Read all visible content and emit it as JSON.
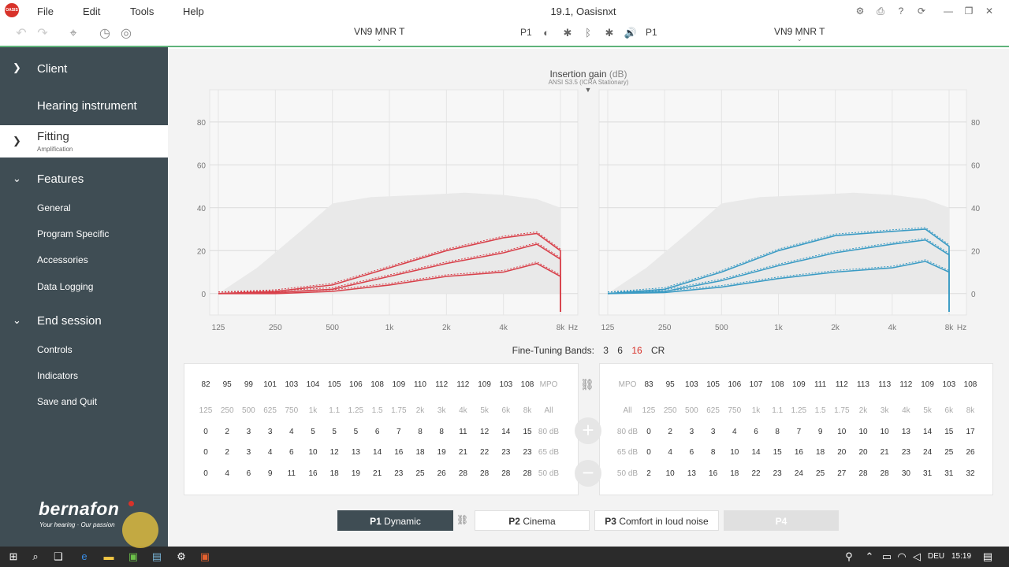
{
  "window": {
    "title": "19.1, Oasisnxt",
    "logo": "OASIS"
  },
  "menu": [
    "File",
    "Edit",
    "Tools",
    "Help"
  ],
  "toolbar": {
    "left_device": "VN9 MNR T",
    "right_device": "VN9 MNR T",
    "program_left": "P1",
    "program_right": "P1"
  },
  "sidebar": {
    "client": "Client",
    "hearing_instrument": "Hearing instrument",
    "fitting": "Fitting",
    "fitting_sub": "Amplification",
    "features": "Features",
    "features_items": [
      "General",
      "Program Specific",
      "Accessories",
      "Data Logging"
    ],
    "end_session": "End session",
    "end_items": [
      "Controls",
      "Indicators",
      "Save and Quit"
    ],
    "brand": "bernafon",
    "brand_tagline": "Your hearing · Our passion"
  },
  "chart": {
    "title": "Insertion gain",
    "unit": "(dB)",
    "subtitle": "ANSI S3.5 (ICRA Stationary)",
    "y_ticks": [
      "80",
      "60",
      "40",
      "20",
      "0"
    ],
    "x_ticks": [
      "125",
      "250",
      "500",
      "1k",
      "2k",
      "4k",
      "8k"
    ],
    "x_unit": "Hz",
    "left_color": "#d8404a",
    "right_color": "#3a9bc4"
  },
  "chart_data": [
    {
      "type": "line",
      "ylim": [
        -10,
        95
      ],
      "x": [
        125,
        250,
        500,
        1000,
        2000,
        4000,
        6000,
        8000
      ],
      "series": [
        {
          "values": [
            0,
            1,
            4,
            12,
            20,
            26,
            28,
            20
          ]
        },
        {
          "values": [
            0,
            0.5,
            2,
            8,
            14,
            19,
            23,
            16
          ]
        },
        {
          "values": [
            0,
            0,
            1,
            4,
            8,
            10,
            14,
            8
          ]
        }
      ]
    },
    {
      "type": "line",
      "ylim": [
        -10,
        95
      ],
      "x": [
        125,
        250,
        500,
        1000,
        2000,
        4000,
        6000,
        8000
      ],
      "series": [
        {
          "values": [
            0,
            2,
            10,
            20,
            27,
            29,
            30,
            22
          ]
        },
        {
          "values": [
            0,
            1,
            6,
            13,
            19,
            23,
            25,
            18
          ]
        },
        {
          "values": [
            0,
            0.5,
            3,
            7,
            10,
            12,
            15,
            10
          ]
        }
      ]
    }
  ],
  "fine_tuning": {
    "label": "Fine-Tuning Bands:",
    "options": [
      "3",
      "6",
      "16",
      "CR"
    ],
    "active": "16"
  },
  "left_table": {
    "mpo": [
      "82",
      "95",
      "99",
      "101",
      "103",
      "104",
      "105",
      "106",
      "108",
      "109",
      "110",
      "112",
      "112",
      "109",
      "103",
      "108"
    ],
    "mpo_label": "MPO",
    "freqs": [
      "125",
      "250",
      "500",
      "625",
      "750",
      "1k",
      "1.1",
      "1.25",
      "1.5",
      "1.75",
      "2k",
      "3k",
      "4k",
      "5k",
      "6k",
      "8k"
    ],
    "freq_label": "All",
    "row80": [
      "0",
      "2",
      "3",
      "3",
      "4",
      "5",
      "5",
      "5",
      "6",
      "7",
      "8",
      "8",
      "11",
      "12",
      "14",
      "15"
    ],
    "row65": [
      "0",
      "2",
      "3",
      "4",
      "6",
      "10",
      "12",
      "13",
      "14",
      "16",
      "18",
      "19",
      "21",
      "22",
      "23",
      "23"
    ],
    "row50": [
      "0",
      "4",
      "6",
      "9",
      "11",
      "16",
      "18",
      "19",
      "21",
      "23",
      "25",
      "26",
      "28",
      "28",
      "28",
      "28"
    ],
    "l80": "80 dB",
    "l65": "65 dB",
    "l50": "50 dB"
  },
  "right_table": {
    "mpo": [
      "83",
      "95",
      "103",
      "105",
      "106",
      "107",
      "108",
      "109",
      "111",
      "112",
      "113",
      "113",
      "112",
      "109",
      "103",
      "108"
    ],
    "mpo_label": "MPO",
    "freqs": [
      "125",
      "250",
      "500",
      "625",
      "750",
      "1k",
      "1.1",
      "1.25",
      "1.5",
      "1.75",
      "2k",
      "3k",
      "4k",
      "5k",
      "6k",
      "8k"
    ],
    "freq_label": "All",
    "row80": [
      "0",
      "2",
      "3",
      "3",
      "4",
      "6",
      "8",
      "7",
      "9",
      "10",
      "10",
      "10",
      "13",
      "14",
      "15",
      "17"
    ],
    "row65": [
      "0",
      "4",
      "6",
      "8",
      "10",
      "14",
      "15",
      "16",
      "18",
      "20",
      "20",
      "21",
      "23",
      "24",
      "25",
      "26"
    ],
    "row50": [
      "2",
      "10",
      "13",
      "16",
      "18",
      "22",
      "23",
      "24",
      "25",
      "27",
      "28",
      "28",
      "30",
      "31",
      "31",
      "32"
    ],
    "l80": "80 dB",
    "l65": "65 dB",
    "l50": "50 dB"
  },
  "programs": [
    {
      "id": "P1",
      "name": "Dynamic"
    },
    {
      "id": "P2",
      "name": "Cinema"
    },
    {
      "id": "P3",
      "name": "Comfort in loud noise"
    },
    {
      "id": "P4",
      "name": ""
    }
  ],
  "taskbar": {
    "lang": "DEU",
    "time": "15:19"
  }
}
